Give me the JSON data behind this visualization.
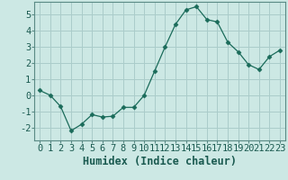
{
  "x": [
    0,
    1,
    2,
    3,
    4,
    5,
    6,
    7,
    8,
    9,
    10,
    11,
    12,
    13,
    14,
    15,
    16,
    17,
    18,
    19,
    20,
    21,
    22,
    23
  ],
  "y": [
    0.3,
    0.0,
    -0.7,
    -2.2,
    -1.8,
    -1.2,
    -1.35,
    -1.3,
    -0.75,
    -0.75,
    0.0,
    1.5,
    3.0,
    4.4,
    5.3,
    5.5,
    4.7,
    4.55,
    3.3,
    2.7,
    1.9,
    1.6,
    2.4,
    2.8
  ],
  "line_color": "#1a6b5a",
  "marker": "D",
  "marker_size": 2.5,
  "bg_color": "#cce8e4",
  "grid_color": "#aaccca",
  "xlabel": "Humidex (Indice chaleur)",
  "ylim": [
    -2.8,
    5.8
  ],
  "xlim": [
    -0.5,
    23.5
  ],
  "yticks": [
    -2,
    -1,
    0,
    1,
    2,
    3,
    4,
    5
  ],
  "xticks": [
    0,
    1,
    2,
    3,
    4,
    5,
    6,
    7,
    8,
    9,
    10,
    11,
    12,
    13,
    14,
    15,
    16,
    17,
    18,
    19,
    20,
    21,
    22,
    23
  ],
  "xlabel_fontsize": 8.5,
  "tick_fontsize": 7.5,
  "font_family": "monospace"
}
